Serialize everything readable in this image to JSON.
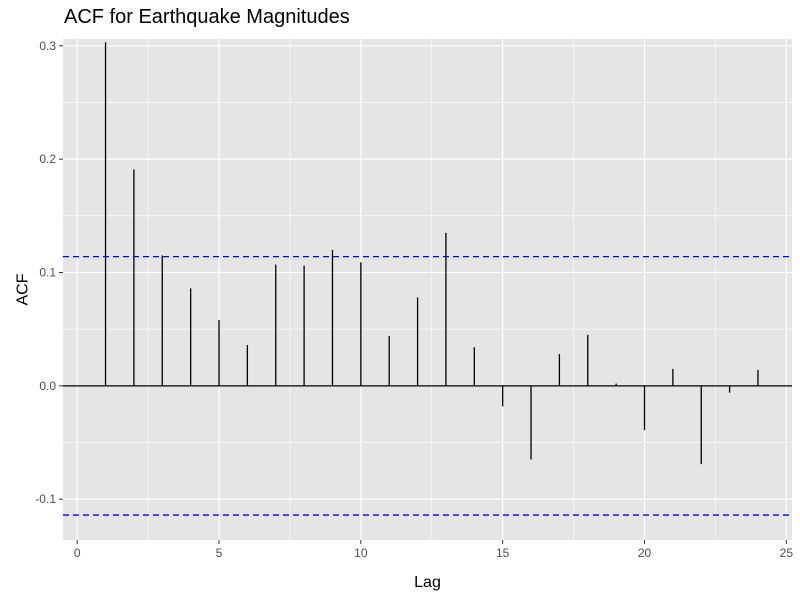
{
  "chart_data": {
    "type": "bar",
    "title": "ACF for Earthquake Magnitudes",
    "xlabel": "Lag",
    "ylabel": "ACF",
    "xlim": [
      -0.5,
      25.2
    ],
    "ylim": [
      -0.136,
      0.306
    ],
    "x_ticks": [
      0,
      5,
      10,
      15,
      20,
      25
    ],
    "x_tick_labels": [
      "0",
      "5",
      "10",
      "15",
      "20",
      "25"
    ],
    "y_ticks": [
      -0.1,
      0.0,
      0.1,
      0.2,
      0.3
    ],
    "y_tick_labels": [
      "-0.1",
      "0.0",
      "0.1",
      "0.2",
      "0.3"
    ],
    "lags": [
      1,
      2,
      3,
      4,
      5,
      6,
      7,
      8,
      9,
      10,
      11,
      12,
      13,
      14,
      15,
      16,
      17,
      18,
      19,
      20,
      21,
      22,
      23,
      24
    ],
    "values": [
      0.303,
      0.191,
      0.115,
      0.086,
      0.058,
      0.036,
      0.107,
      0.106,
      0.12,
      0.109,
      0.044,
      0.078,
      0.135,
      0.034,
      -0.018,
      -0.065,
      0.028,
      0.045,
      0.002,
      -0.039,
      0.015,
      -0.069,
      -0.006,
      0.014
    ],
    "confidence_bound": 0.114,
    "confidence_line_color": "#0000ff",
    "spike_color": "#000000",
    "zero_line_color": "#000000",
    "panel_background": "#e5e5e5",
    "grid": true,
    "grid_color": "#ffffff"
  }
}
